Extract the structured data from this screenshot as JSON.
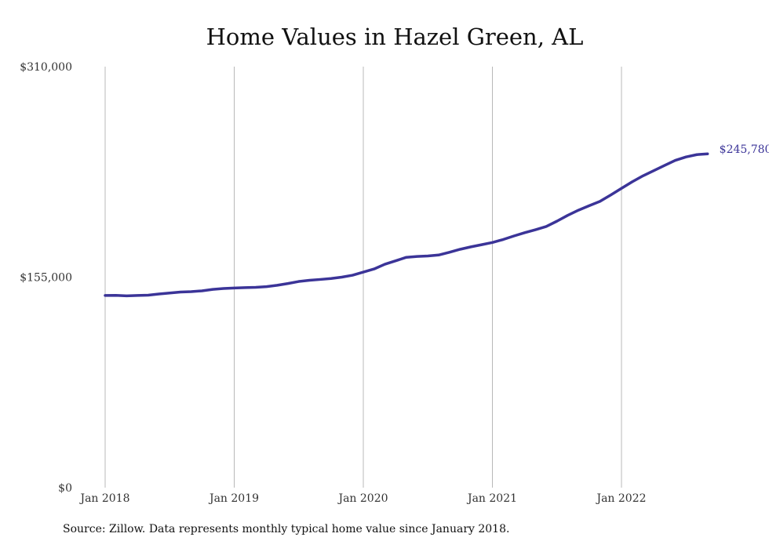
{
  "chart_data": {
    "type": "line",
    "title": "Home Values in Hazel Green, AL",
    "xlabel": "",
    "ylabel": "",
    "ylim": [
      0,
      310000
    ],
    "yticks": [
      0,
      155000,
      310000
    ],
    "ytick_labels": [
      "$0",
      "$155,000",
      "$310,000"
    ],
    "xticks": [
      "Jan 2018",
      "Jan 2019",
      "Jan 2020",
      "Jan 2021",
      "Jan 2022"
    ],
    "grid": "vertical",
    "end_label": "$245,780",
    "series": [
      {
        "values": [
          141500,
          141600,
          141200,
          141500,
          141700,
          142600,
          143300,
          144000,
          144300,
          144900,
          146000,
          146600,
          147000,
          147300,
          147500,
          148000,
          149000,
          150300,
          151800,
          152700,
          153300,
          154000,
          155000,
          156400,
          158700,
          161000,
          164500,
          167000,
          169600,
          170200,
          170600,
          171300,
          173300,
          175500,
          177300,
          178900,
          180500,
          182700,
          185300,
          187700,
          189900,
          192300,
          196200,
          200500,
          204300,
          207600,
          210800,
          215500,
          220400,
          225200,
          229600,
          233400,
          237200,
          241000,
          243500,
          245200,
          245780
        ]
      }
    ]
  },
  "colors": {
    "line": "#3b3498",
    "grid": "#b8b8b8",
    "end_label": "#3b3498"
  },
  "source": "Source: Zillow. Data represents monthly typical home value since January 2018."
}
